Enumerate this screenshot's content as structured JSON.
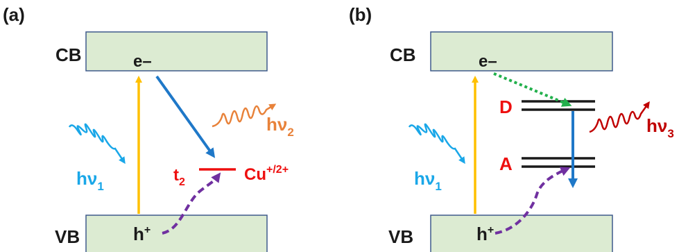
{
  "panel_a": {
    "tag": "(a)",
    "cb_label": "CB",
    "vb_label": "VB",
    "electron": "e–",
    "hole": "h",
    "hole_sup": "+",
    "excitation_photon": {
      "h": "hν",
      "sub": "1"
    },
    "emission_photon": {
      "h": "hν",
      "sub": "2"
    },
    "level_label": {
      "base": "t",
      "sub": "2"
    },
    "ion_label": {
      "base": "Cu",
      "sup": "+/2+"
    }
  },
  "panel_b": {
    "tag": "(b)",
    "cb_label": "CB",
    "vb_label": "VB",
    "electron": "e–",
    "hole": "h",
    "hole_sup": "+",
    "excitation_photon": {
      "h": "hν",
      "sub": "1"
    },
    "emission_photon": {
      "h": "hν",
      "sub": "3"
    },
    "donor_label": "D",
    "acceptor_label": "A"
  },
  "colors": {
    "band_fill": "#dcebd2",
    "band_stroke": "#3e5a8c",
    "excitation_arrow": "#ffc000",
    "relaxation_arrow": "#1f78c8",
    "hole_path": "#7030a0",
    "donor_path": "#22b04c",
    "excitation_wave": "#1aa7e8",
    "emission_wave_a": "#e8823a",
    "emission_wave_b": "#c00000",
    "defect_level": "#ee0f0f"
  }
}
